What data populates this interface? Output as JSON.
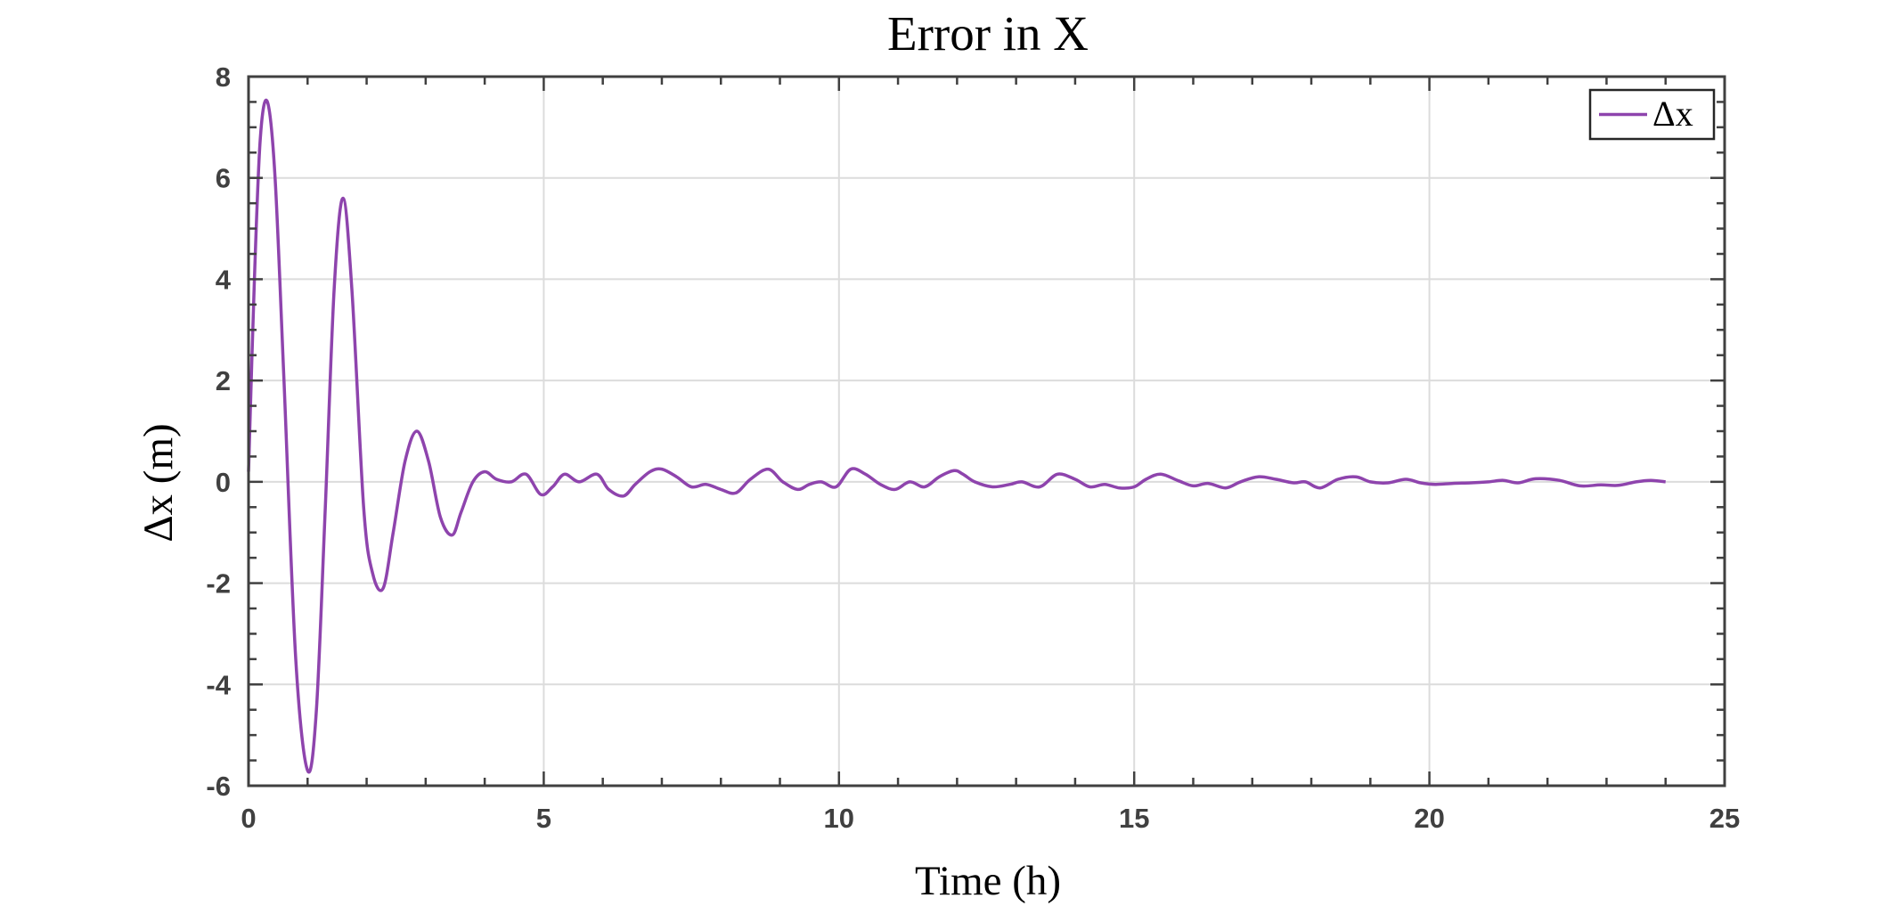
{
  "chart_data": {
    "type": "line",
    "title": "Error in X",
    "xlabel": "Time (h)",
    "ylabel": "Δx (m)",
    "xlim": [
      0,
      25
    ],
    "ylim": [
      -6,
      8
    ],
    "x_ticks": [
      0,
      5,
      10,
      15,
      20,
      25
    ],
    "x_tick_labels": [
      "0",
      "5",
      "10",
      "15",
      "20",
      "25"
    ],
    "y_ticks": [
      -6,
      -4,
      -2,
      0,
      2,
      4,
      6,
      8
    ],
    "y_tick_labels": [
      "-6",
      "-4",
      "-2",
      "0",
      "2",
      "4",
      "6",
      "8"
    ],
    "grid": true,
    "legend_position": "top-right",
    "series": [
      {
        "name": "Δx",
        "color": "#8e44ad",
        "x": [
          0,
          0.1,
          0.2,
          0.32,
          0.45,
          0.6,
          0.8,
          1.0,
          1.15,
          1.3,
          1.45,
          1.6,
          1.75,
          1.95,
          2.1,
          2.28,
          2.45,
          2.65,
          2.85,
          3.05,
          3.25,
          3.45,
          3.6,
          3.8,
          4.0,
          4.2,
          4.45,
          4.7,
          4.95,
          5.15,
          5.35,
          5.6,
          5.9,
          6.1,
          6.35,
          6.55,
          6.8,
          7.0,
          7.25,
          7.5,
          7.75,
          8.0,
          8.25,
          8.5,
          8.8,
          9.05,
          9.3,
          9.5,
          9.7,
          9.95,
          10.2,
          10.45,
          10.7,
          10.95,
          11.2,
          11.45,
          11.7,
          11.95,
          12.1,
          12.3,
          12.6,
          12.9,
          13.1,
          13.4,
          13.7,
          14.0,
          14.25,
          14.5,
          14.75,
          15.0,
          15.2,
          15.45,
          15.75,
          16.0,
          16.25,
          16.55,
          16.8,
          17.1,
          17.4,
          17.7,
          17.9,
          18.15,
          18.45,
          18.75,
          19.0,
          19.3,
          19.6,
          19.85,
          20.1,
          20.4,
          20.7,
          21.0,
          21.25,
          21.5,
          21.8,
          22.2,
          22.55,
          22.9,
          23.2,
          23.5,
          23.75,
          24.0
        ],
        "y": [
          0.2,
          4.0,
          6.8,
          7.5,
          6.0,
          2.0,
          -3.5,
          -5.7,
          -4.5,
          -0.5,
          3.8,
          5.6,
          3.8,
          -0.5,
          -1.8,
          -2.1,
          -1.0,
          0.4,
          1.0,
          0.4,
          -0.7,
          -1.05,
          -0.6,
          0.0,
          0.2,
          0.05,
          0.0,
          0.15,
          -0.25,
          -0.1,
          0.15,
          0.0,
          0.15,
          -0.15,
          -0.28,
          -0.05,
          0.2,
          0.25,
          0.1,
          -0.1,
          -0.05,
          -0.15,
          -0.22,
          0.05,
          0.25,
          0.0,
          -0.15,
          -0.05,
          0.0,
          -0.1,
          0.25,
          0.15,
          -0.05,
          -0.15,
          0.0,
          -0.1,
          0.1,
          0.22,
          0.15,
          0.0,
          -0.1,
          -0.05,
          0.0,
          -0.1,
          0.15,
          0.05,
          -0.1,
          -0.05,
          -0.12,
          -0.1,
          0.05,
          0.15,
          0.02,
          -0.08,
          -0.03,
          -0.12,
          0.0,
          0.1,
          0.05,
          -0.02,
          0.0,
          -0.12,
          0.05,
          0.1,
          0.0,
          -0.02,
          0.05,
          -0.02,
          -0.05,
          -0.03,
          -0.02,
          0.0,
          0.03,
          -0.02,
          0.06,
          0.03,
          -0.08,
          -0.06,
          -0.07,
          0.0,
          0.03,
          0.0
        ]
      }
    ]
  }
}
